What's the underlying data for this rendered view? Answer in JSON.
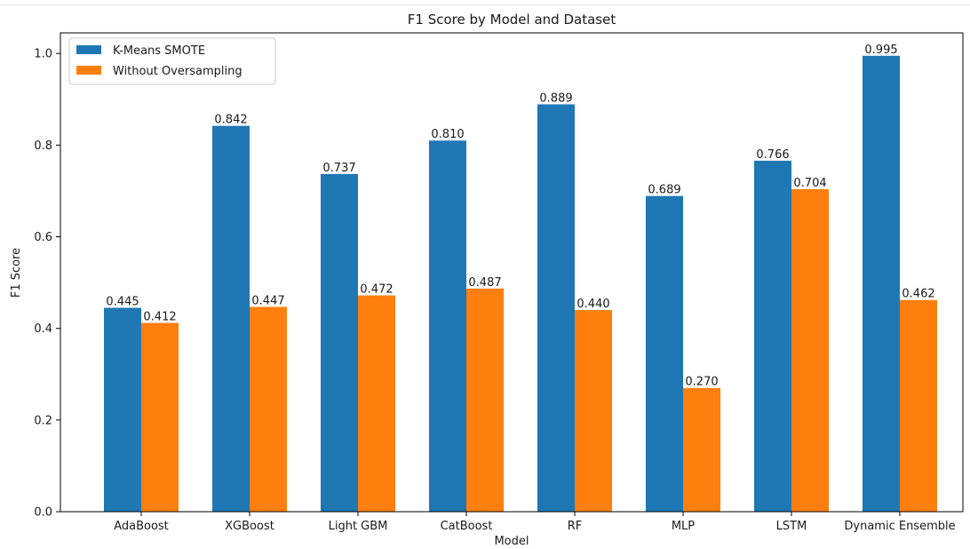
{
  "chart_data": {
    "type": "bar",
    "title": "F1 Score by Model and Dataset",
    "xlabel": "Model",
    "ylabel": "F1 Score",
    "categories": [
      "AdaBoost",
      "XGBoost",
      "Light GBM",
      "CatBoost",
      "RF",
      "MLP",
      "LSTM",
      "Dynamic Ensemble"
    ],
    "series": [
      {
        "name": "K-Means SMOTE",
        "color": "#1f77b4",
        "values": [
          0.445,
          0.842,
          0.737,
          0.81,
          0.889,
          0.689,
          0.766,
          0.995
        ],
        "labels": [
          "0.445",
          "0.842",
          "0.737",
          "0.810",
          "0.889",
          "0.689",
          "0.766",
          "0.995"
        ]
      },
      {
        "name": "Without Oversampling",
        "color": "#ff7f0e",
        "values": [
          0.412,
          0.447,
          0.472,
          0.487,
          0.44,
          0.27,
          0.704,
          0.462
        ],
        "labels": [
          "0.412",
          "0.447",
          "0.472",
          "0.487",
          "0.440",
          "0.270",
          "0.704",
          "0.462"
        ]
      }
    ],
    "ylim": [
      0,
      1.045
    ],
    "yticks": [
      0.0,
      0.2,
      0.4,
      0.6,
      0.8,
      1.0
    ],
    "ytick_labels": [
      "0.0",
      "0.2",
      "0.4",
      "0.6",
      "0.8",
      "1.0"
    ],
    "grid": false,
    "legend_position": "top-left"
  }
}
